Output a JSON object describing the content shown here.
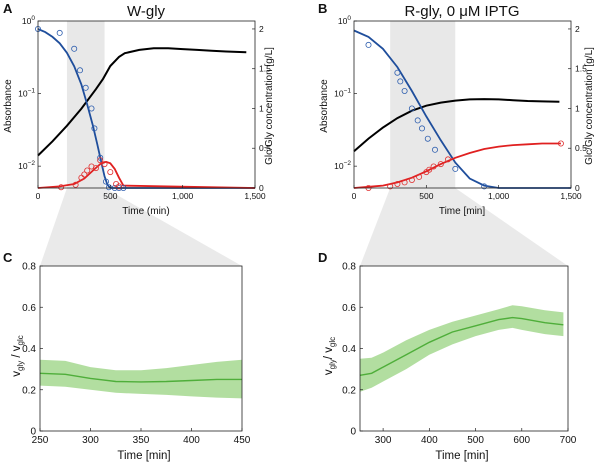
{
  "chart_data": [
    {
      "panel": "A",
      "type": "line",
      "title": "W-gly",
      "xlabel": "Time (min)",
      "ylabel": "Absorbance",
      "y2label": "Glc/Gly concentration [g/L]",
      "xlim": [
        0,
        1500
      ],
      "xticks": [
        "0",
        "500",
        "1,000",
        "1,500"
      ],
      "ylim_log": [
        0.005,
        1
      ],
      "yticks_log": [
        {
          "v": 1,
          "mant": "10",
          "exp": "0"
        },
        {
          "v": 0.1,
          "mant": "10",
          "exp": "−1"
        },
        {
          "v": 0.01,
          "mant": "10",
          "exp": "−2"
        }
      ],
      "y2lim": [
        0,
        2.1
      ],
      "y2ticks": [
        0,
        0.5,
        1,
        1.5,
        2
      ],
      "y2ticklabels": [
        "0",
        "0.5",
        "1",
        "1.5",
        "2"
      ],
      "shaded_range": [
        200,
        460
      ],
      "series": [
        {
          "name": "Absorbance",
          "axis": "log",
          "color": "#000000",
          "x": [
            0,
            100,
            200,
            300,
            400,
            450,
            500,
            560,
            600,
            700,
            800,
            900,
            1000,
            1100,
            1200,
            1300,
            1440
          ],
          "y": [
            0.014,
            0.022,
            0.036,
            0.062,
            0.115,
            0.16,
            0.24,
            0.32,
            0.36,
            0.4,
            0.42,
            0.42,
            0.41,
            0.4,
            0.39,
            0.38,
            0.37
          ]
        },
        {
          "name": "Glucose fit",
          "axis": "right",
          "color": "#1f4e9c",
          "x": [
            0,
            50,
            100,
            150,
            200,
            250,
            300,
            340,
            380,
            410,
            440,
            460,
            480,
            500,
            1500
          ],
          "y": [
            2.0,
            1.96,
            1.9,
            1.82,
            1.7,
            1.53,
            1.3,
            1.05,
            0.78,
            0.55,
            0.3,
            0.15,
            0.04,
            0,
            0
          ]
        },
        {
          "name": "Glycerol fit",
          "axis": "right",
          "color": "#e02020",
          "x": [
            0,
            150,
            250,
            320,
            380,
            430,
            470,
            500,
            530,
            560,
            590,
            1500
          ],
          "y": [
            0,
            0.02,
            0.05,
            0.12,
            0.22,
            0.3,
            0.33,
            0.31,
            0.24,
            0.13,
            0.03,
            0
          ]
        }
      ],
      "markers": [
        {
          "name": "Glucose data",
          "color": "#2f5faf",
          "x": [
            0,
            150,
            250,
            290,
            330,
            370,
            390,
            430,
            470,
            490,
            530,
            560,
            590
          ],
          "y": [
            2.0,
            1.95,
            1.75,
            1.48,
            1.26,
            1.0,
            0.75,
            0.38,
            0.08,
            0.01,
            0,
            0,
            0
          ]
        },
        {
          "name": "Glycerol data",
          "color": "#e03030",
          "x": [
            160,
            260,
            300,
            320,
            340,
            370,
            400,
            430,
            460,
            500,
            540,
            560
          ],
          "y": [
            0.01,
            0.04,
            0.13,
            0.17,
            0.22,
            0.27,
            0.25,
            0.35,
            0.3,
            0.2,
            0.05,
            0.02
          ]
        }
      ]
    },
    {
      "panel": "B",
      "type": "line",
      "title": "R-gly, 0 μM IPTG",
      "xlabel": "Time [min]",
      "ylabel": "Absorbance",
      "y2label": "Glc/Gly concentration [g/L]",
      "xlim": [
        0,
        1500
      ],
      "xticks": [
        "0",
        "500",
        "1,000",
        "1,500"
      ],
      "ylim_log": [
        0.005,
        1
      ],
      "yticks_log": [
        {
          "v": 1,
          "mant": "10",
          "exp": "0"
        },
        {
          "v": 0.1,
          "mant": "10",
          "exp": "−1"
        },
        {
          "v": 0.01,
          "mant": "10",
          "exp": "−2"
        }
      ],
      "y2lim": [
        0,
        2.1
      ],
      "y2ticks": [
        0,
        0.5,
        1,
        1.5,
        2
      ],
      "y2ticklabels": [
        "0",
        "0.5",
        "1",
        "1.5",
        "2"
      ],
      "shaded_range": [
        250,
        700
      ],
      "series": [
        {
          "name": "Absorbance",
          "axis": "log",
          "color": "#000000",
          "x": [
            0,
            100,
            200,
            300,
            400,
            500,
            600,
            700,
            800,
            900,
            1000,
            1100,
            1200,
            1300,
            1420
          ],
          "y": [
            0.016,
            0.024,
            0.034,
            0.046,
            0.058,
            0.068,
            0.075,
            0.08,
            0.083,
            0.084,
            0.083,
            0.081,
            0.079,
            0.078,
            0.077
          ]
        },
        {
          "name": "Glucose fit",
          "axis": "right",
          "color": "#1f4e9c",
          "x": [
            0,
            100,
            200,
            300,
            400,
            500,
            600,
            700,
            800,
            900,
            1000,
            1200,
            1500
          ],
          "y": [
            1.98,
            1.9,
            1.75,
            1.52,
            1.22,
            0.9,
            0.6,
            0.32,
            0.12,
            0.03,
            0,
            0,
            0
          ]
        },
        {
          "name": "Glycerol fit",
          "axis": "right",
          "color": "#e02020",
          "x": [
            0,
            200,
            300,
            400,
            500,
            600,
            700,
            800,
            900,
            1000,
            1100,
            1200,
            1300,
            1430
          ],
          "y": [
            0,
            0.03,
            0.07,
            0.13,
            0.21,
            0.3,
            0.38,
            0.44,
            0.49,
            0.52,
            0.54,
            0.55,
            0.56,
            0.56
          ]
        }
      ],
      "markers": [
        {
          "name": "Glucose data",
          "color": "#2f5faf",
          "x": [
            100,
            300,
            320,
            350,
            400,
            440,
            470,
            510,
            560,
            700,
            900
          ],
          "y": [
            1.8,
            1.45,
            1.34,
            1.22,
            1.0,
            0.85,
            0.75,
            0.62,
            0.48,
            0.24,
            0.02
          ]
        },
        {
          "name": "Glycerol data",
          "color": "#e03030",
          "x": [
            100,
            250,
            300,
            350,
            400,
            450,
            500,
            520,
            550,
            600,
            650,
            1430
          ],
          "y": [
            0,
            0.02,
            0.05,
            0.07,
            0.1,
            0.14,
            0.2,
            0.23,
            0.27,
            0.3,
            0.36,
            0.56
          ]
        }
      ]
    },
    {
      "panel": "C",
      "type": "area",
      "xlabel": "Time [min]",
      "ylabel": "v gly / v glc",
      "ylabel_parts": [
        "v",
        "gly",
        " / v",
        "glc"
      ],
      "xlim": [
        250,
        450
      ],
      "xticks": [
        250,
        300,
        350,
        400,
        450
      ],
      "ylim": [
        0,
        0.8
      ],
      "yticks": [
        0,
        0.2,
        0.4,
        0.6,
        0.8
      ],
      "yticklabels": [
        "0",
        "0.2",
        "0.4",
        "0.6",
        "0.8"
      ],
      "x": [
        250,
        275,
        300,
        325,
        350,
        375,
        400,
        425,
        450
      ],
      "mean": [
        0.28,
        0.275,
        0.255,
        0.24,
        0.238,
        0.24,
        0.245,
        0.25,
        0.25
      ],
      "lower": [
        0.22,
        0.215,
        0.2,
        0.185,
        0.18,
        0.175,
        0.168,
        0.162,
        0.158
      ],
      "upper": [
        0.345,
        0.34,
        0.31,
        0.295,
        0.295,
        0.305,
        0.32,
        0.335,
        0.345
      ]
    },
    {
      "panel": "D",
      "type": "area",
      "xlabel": "Time [min]",
      "ylabel": "v gly / v glc",
      "ylabel_parts": [
        "v",
        "gly",
        "/ v",
        "glc"
      ],
      "xlim": [
        250,
        700
      ],
      "xticks": [
        300,
        400,
        500,
        600,
        700
      ],
      "ylim": [
        0,
        0.8
      ],
      "yticks": [
        0,
        0.2,
        0.4,
        0.6,
        0.8
      ],
      "yticklabels": [
        "0",
        "0.2",
        "0.4",
        "0.6",
        "0.8"
      ],
      "x": [
        250,
        275,
        300,
        350,
        400,
        450,
        500,
        550,
        580,
        600,
        650,
        690
      ],
      "mean": [
        0.27,
        0.28,
        0.31,
        0.37,
        0.43,
        0.48,
        0.51,
        0.54,
        0.55,
        0.545,
        0.525,
        0.515
      ],
      "lower": [
        0.19,
        0.21,
        0.24,
        0.3,
        0.37,
        0.42,
        0.46,
        0.49,
        0.5,
        0.49,
        0.47,
        0.46
      ],
      "upper": [
        0.35,
        0.355,
        0.38,
        0.44,
        0.49,
        0.53,
        0.56,
        0.59,
        0.61,
        0.605,
        0.585,
        0.575
      ]
    }
  ],
  "colors": {
    "area_fill": "#a5d88f",
    "mean_line": "#4fae3a",
    "shade": "#d9d9d9",
    "glucose": "#1f4e9c",
    "glycerol": "#e02020"
  }
}
